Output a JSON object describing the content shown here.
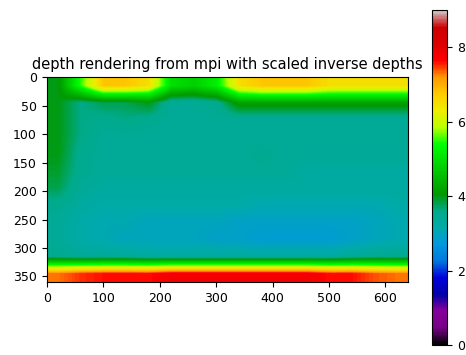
{
  "chart_data": {
    "type": "heatmap",
    "title": "depth rendering from mpi with scaled inverse depths",
    "xlim": [
      -0.5,
      639.5
    ],
    "ylim": [
      359.5,
      -0.5
    ],
    "xticks": [
      0,
      100,
      200,
      300,
      400,
      500,
      600
    ],
    "yticks": [
      0,
      50,
      100,
      150,
      200,
      250,
      300,
      350
    ],
    "cells": [
      [
        4.0,
        5.5,
        6.8,
        6.8,
        6.5,
        5.0,
        4.8,
        5.2,
        6.5,
        6.8,
        6.8,
        6.8,
        6.5,
        6.5,
        6.5,
        6.5
      ],
      [
        4.0,
        3.6,
        3.8,
        3.8,
        4.0,
        3.4,
        3.4,
        3.5,
        4.2,
        4.2,
        4.2,
        4.2,
        4.2,
        4.2,
        4.2,
        4.2
      ],
      [
        4.0,
        3.6,
        3.5,
        3.6,
        3.5,
        3.4,
        3.4,
        3.4,
        3.4,
        3.4,
        3.4,
        3.4,
        3.4,
        3.4,
        3.4,
        3.4
      ],
      [
        4.0,
        3.6,
        3.4,
        3.4,
        3.4,
        3.4,
        3.4,
        3.4,
        3.4,
        3.4,
        3.4,
        3.4,
        3.4,
        3.4,
        3.4,
        3.4
      ],
      [
        4.0,
        3.5,
        3.4,
        3.4,
        3.4,
        3.4,
        3.4,
        3.4,
        3.4,
        3.5,
        3.4,
        3.4,
        3.4,
        3.4,
        3.4,
        3.4
      ],
      [
        3.9,
        3.5,
        3.4,
        3.4,
        3.4,
        3.4,
        3.4,
        3.4,
        3.4,
        3.4,
        3.4,
        3.3,
        3.3,
        3.3,
        3.3,
        3.3
      ],
      [
        3.8,
        3.4,
        3.3,
        3.3,
        3.3,
        3.3,
        3.3,
        3.3,
        3.3,
        3.3,
        3.3,
        3.3,
        3.3,
        3.3,
        3.3,
        3.3
      ],
      [
        3.5,
        3.3,
        3.2,
        3.2,
        3.2,
        3.2,
        3.2,
        3.2,
        3.2,
        3.1,
        3.1,
        3.1,
        3.1,
        3.1,
        3.1,
        3.2
      ],
      [
        3.4,
        3.2,
        3.1,
        3.1,
        3.0,
        3.0,
        3.0,
        3.0,
        2.9,
        2.9,
        2.9,
        2.9,
        2.9,
        2.9,
        3.0,
        3.1
      ],
      [
        3.4,
        3.2,
        3.1,
        3.0,
        3.0,
        3.0,
        3.0,
        2.9,
        2.9,
        2.8,
        2.8,
        2.8,
        2.8,
        2.9,
        3.0,
        3.1
      ],
      [
        3.5,
        3.4,
        3.4,
        3.4,
        3.3,
        3.3,
        3.3,
        3.3,
        3.3,
        3.3,
        3.3,
        3.3,
        3.3,
        3.4,
        3.5,
        3.5
      ],
      [
        7.3,
        7.5,
        7.6,
        7.6,
        7.6,
        7.8,
        7.8,
        7.8,
        7.8,
        7.8,
        7.8,
        7.8,
        7.6,
        7.6,
        7.4,
        7.3
      ]
    ],
    "colorbar": {
      "range": [
        0,
        9
      ],
      "ticks": [
        0,
        2,
        4,
        6,
        8
      ]
    }
  }
}
